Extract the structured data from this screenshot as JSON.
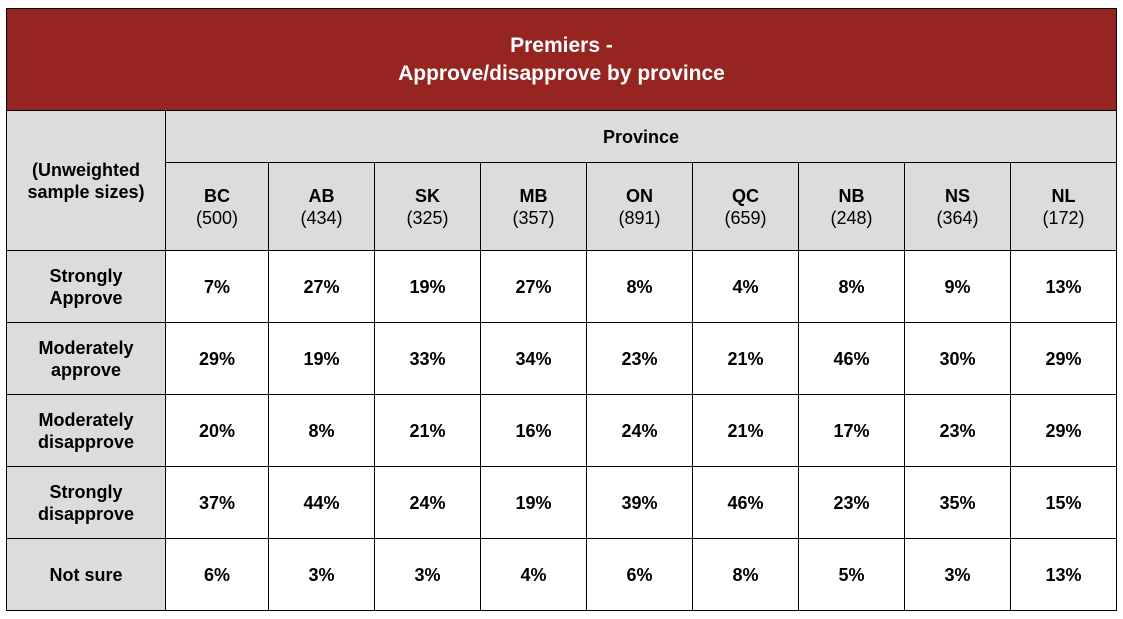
{
  "chart_data": {
    "type": "table",
    "title_line1": "Premiers -",
    "title_line2": "Approve/disapprove by province",
    "corner_label": "(Unweighted sample sizes)",
    "group_header": "Province",
    "columns": [
      {
        "code": "BC",
        "n": "(500)"
      },
      {
        "code": "AB",
        "n": "(434)"
      },
      {
        "code": "SK",
        "n": "(325)"
      },
      {
        "code": "MB",
        "n": "(357)"
      },
      {
        "code": "ON",
        "n": "(891)"
      },
      {
        "code": "QC",
        "n": "(659)"
      },
      {
        "code": "NB",
        "n": "(248)"
      },
      {
        "code": "NS",
        "n": "(364)"
      },
      {
        "code": "NL",
        "n": "(172)"
      }
    ],
    "rows": [
      {
        "label": "Strongly Approve",
        "values": [
          "7%",
          "27%",
          "19%",
          "27%",
          "8%",
          "4%",
          "8%",
          "9%",
          "13%"
        ]
      },
      {
        "label": "Moderately approve",
        "values": [
          "29%",
          "19%",
          "33%",
          "34%",
          "23%",
          "21%",
          "46%",
          "30%",
          "29%"
        ]
      },
      {
        "label": "Moderately disapprove",
        "values": [
          "20%",
          "8%",
          "21%",
          "16%",
          "24%",
          "21%",
          "17%",
          "23%",
          "29%"
        ]
      },
      {
        "label": "Strongly disapprove",
        "values": [
          "37%",
          "44%",
          "24%",
          "19%",
          "39%",
          "46%",
          "23%",
          "35%",
          "15%"
        ]
      },
      {
        "label": "Not sure",
        "values": [
          "6%",
          "3%",
          "3%",
          "4%",
          "6%",
          "8%",
          "5%",
          "3%",
          "13%"
        ]
      }
    ]
  },
  "colors": {
    "title_background": "#962521",
    "title_text": "#ffffff",
    "header_background": "#dcdcdc",
    "cell_background": "#ffffff",
    "border": "#000000"
  }
}
